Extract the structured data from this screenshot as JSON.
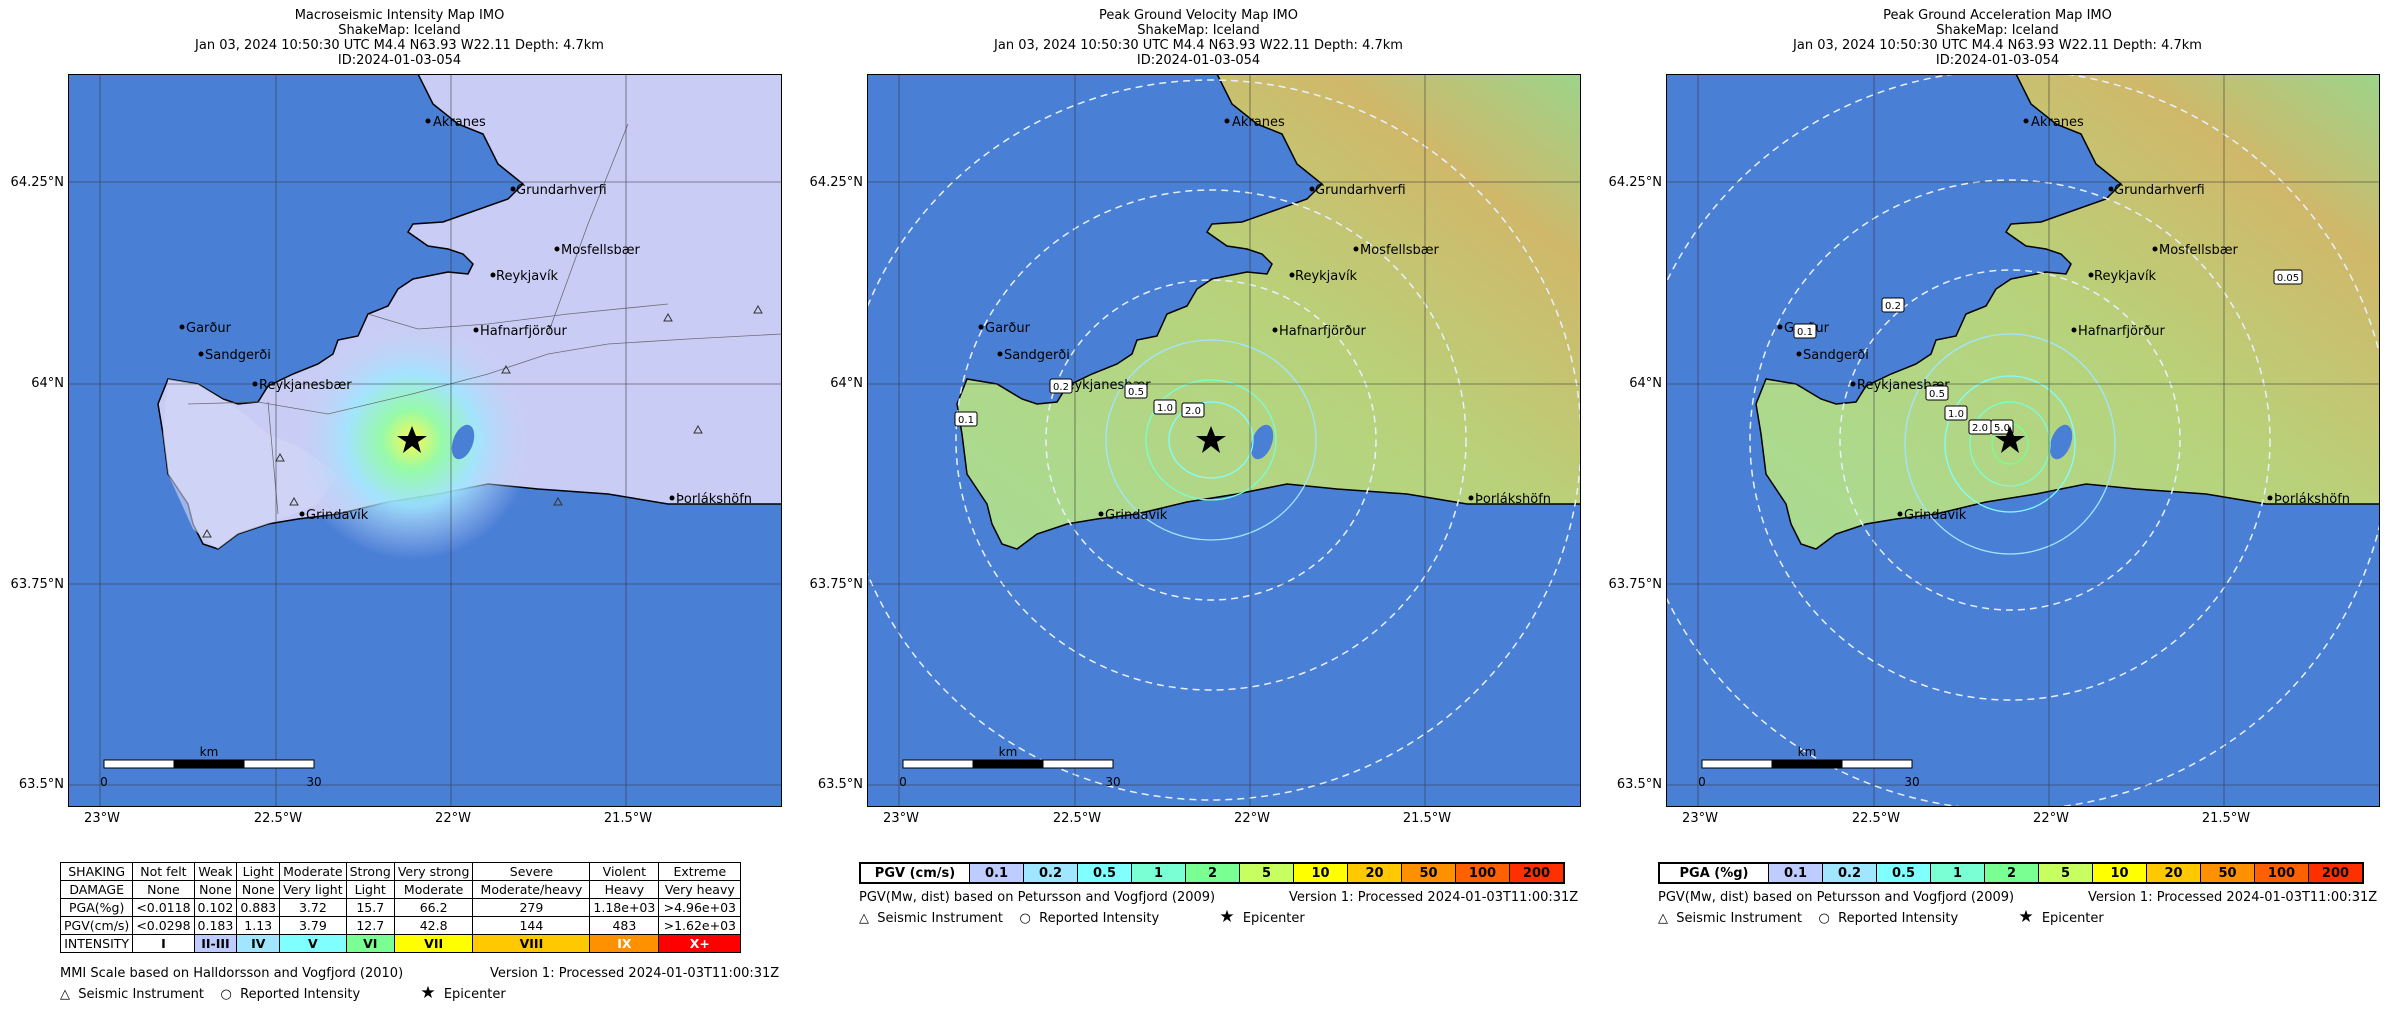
{
  "panels": [
    {
      "title_lines": [
        "Macroseismic Intensity Map IMO",
        "ShakeMap: Iceland",
        "Jan 03, 2024 10:50:30 UTC M4.4 N63.93 W22.11 Depth: 4.7km",
        "ID:2024-01-03-054"
      ],
      "contour_labels": []
    },
    {
      "title_lines": [
        "Peak Ground Velocity Map IMO",
        "ShakeMap: Iceland",
        "Jan 03, 2024 10:50:30 UTC M4.4 N63.93 W22.11 Depth: 4.7km",
        "ID:2024-01-03-054"
      ],
      "contour_labels": [
        "0.1",
        "0.2",
        "0.5",
        "1.0",
        "2.0"
      ]
    },
    {
      "title_lines": [
        "Peak Ground Acceleration Map IMO",
        "ShakeMap: Iceland",
        "Jan 03, 2024 10:50:30 UTC M4.4 N63.93 W22.11 Depth: 4.7km",
        "ID:2024-01-03-054"
      ],
      "contour_labels": [
        "0.05",
        "0.1",
        "0.2",
        "0.5",
        "1.0",
        "2.0",
        "5.0"
      ]
    }
  ],
  "lat_labels": [
    "64.25°N",
    "64°N",
    "63.75°N",
    "63.5°N"
  ],
  "lon_labels": [
    "23°W",
    "22.5°W",
    "22°W",
    "21.5°W"
  ],
  "cities": [
    "Akranes",
    "Grundarhverfi",
    "Mosfellsbær",
    "Reykjavík",
    "Hafnarfjörður",
    "Garður",
    "Sandgerði",
    "Reykjanesbær",
    "Grindavík",
    "Þorlákshöfn"
  ],
  "scale": {
    "unit": "km",
    "start": "0",
    "end": "30"
  },
  "mmi_legend": {
    "rows": [
      [
        "SHAKING",
        "Not felt",
        "Weak",
        "Light",
        "Moderate",
        "Strong",
        "Very strong",
        "Severe",
        "Violent",
        "Extreme"
      ],
      [
        "DAMAGE",
        "None",
        "None",
        "None",
        "Very light",
        "Light",
        "Moderate",
        "Moderate/heavy",
        "Heavy",
        "Very heavy"
      ],
      [
        "PGA(%g)",
        "<0.0118",
        "0.102",
        "0.883",
        "3.72",
        "15.7",
        "66.2",
        "279",
        "1.18e+03",
        ">4.96e+03"
      ],
      [
        "PGV(cm/s)",
        "<0.0298",
        "0.183",
        "1.13",
        "3.79",
        "12.7",
        "42.8",
        "144",
        "483",
        ">1.62e+03"
      ],
      [
        "INTENSITY",
        "I",
        "II-III",
        "IV",
        "V",
        "VI",
        "VII",
        "VIII",
        "IX",
        "X+"
      ]
    ],
    "intensity_colors": [
      "#ffffff",
      "#bfccff",
      "#a0e6ff",
      "#80ffff",
      "#7aff93",
      "#ffff00",
      "#ffc800",
      "#ff9100",
      "#ff0000",
      "#c80000"
    ],
    "footnote_left": "MMI Scale based on Halldorsson and Vogfjord (2010)",
    "footnote_right": "Version 1: Processed 2024-01-03T11:00:31Z"
  },
  "pgv_legend": {
    "label": "PGV (cm/s)",
    "bins": [
      "0.1",
      "0.2",
      "0.5",
      "1",
      "2",
      "5",
      "10",
      "20",
      "50",
      "100",
      "200"
    ],
    "colors": [
      "#bfccff",
      "#a0e6ff",
      "#80ffff",
      "#7affd4",
      "#7aff93",
      "#c7ff60",
      "#ffff00",
      "#ffc800",
      "#ff9100",
      "#ff6000",
      "#ff3000"
    ],
    "footnote_left": "PGV(Mw, dist) based on Petursson and Vogfjord (2009)",
    "footnote_right": "Version 1: Processed 2024-01-03T11:00:31Z"
  },
  "pga_legend": {
    "label": "PGA (%g)",
    "bins": [
      "0.1",
      "0.2",
      "0.5",
      "1",
      "2",
      "5",
      "10",
      "20",
      "50",
      "100",
      "200"
    ],
    "colors": [
      "#bfccff",
      "#a0e6ff",
      "#80ffff",
      "#7affd4",
      "#7aff93",
      "#c7ff60",
      "#ffff00",
      "#ffc800",
      "#ff9100",
      "#ff6000",
      "#ff3000"
    ],
    "footnote_left": "PGV(Mw, dist) based on Petursson and Vogfjord (2009)",
    "footnote_right": "Version 1: Processed 2024-01-03T11:00:31Z"
  },
  "symbols": {
    "instrument": "Seismic Instrument",
    "reported": "Reported Intensity",
    "epicenter": "Epicenter"
  },
  "colors": {
    "ocean": "#4a7fd6",
    "land_mmi": "#c9cdf5",
    "land_green": "#9fd48c",
    "land_high": "#c8b768",
    "grid": "#333333"
  }
}
